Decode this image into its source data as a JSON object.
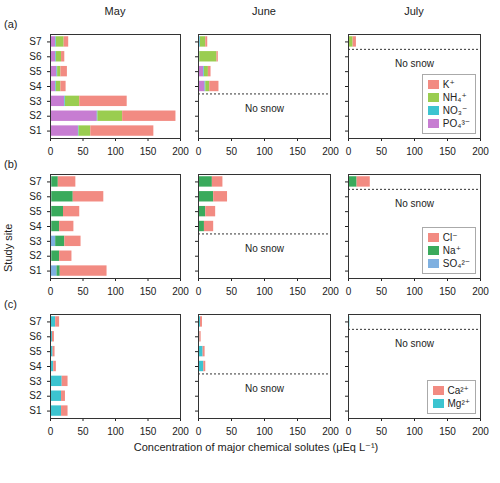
{
  "chart_data": {
    "type": "bar",
    "orientation": "horizontal",
    "stacked": true,
    "xlabel": "Concentration of major chemical solutes (μEq L⁻¹)",
    "ylabel": "Study site",
    "columns": [
      "May",
      "June",
      "July"
    ],
    "categories": [
      "S1",
      "S2",
      "S3",
      "S4",
      "S5",
      "S6",
      "S7"
    ],
    "xlim": [
      0,
      200
    ],
    "xticks": [
      0,
      50,
      100,
      150,
      200
    ],
    "annotation": "No snow",
    "panels": [
      {
        "title": "(a)",
        "legend": "bottom-right",
        "series": [
          {
            "name": "K⁺",
            "color": "#f28b82",
            "values": [
              [
                97,
                82,
                73,
                8,
                10,
                5,
                7
              ],
              [
                null,
                null,
                null,
                14,
                4,
                2,
                3
              ],
              [
                null,
                null,
                null,
                null,
                null,
                null,
                5
              ]
            ]
          },
          {
            "name": "NH₄⁺",
            "color": "#9acd50",
            "values": [
              [
                18,
                38,
                22,
                7,
                5,
                8,
                12
              ],
              [
                null,
                null,
                null,
                6,
                6,
                26,
                8
              ],
              [
                null,
                null,
                null,
                null,
                null,
                null,
                6
              ]
            ]
          },
          {
            "name": "NO₃⁻",
            "color": "#3cc4d0",
            "values": [
              [
                1,
                1,
                1,
                1,
                1,
                1,
                1
              ],
              [
                null,
                null,
                null,
                1,
                1,
                1,
                1
              ],
              [
                null,
                null,
                null,
                null,
                null,
                null,
                1
              ]
            ]
          },
          {
            "name": "PO₄³⁻",
            "color": "#c77dd2",
            "values": [
              [
                43,
                72,
                22,
                8,
                10,
                8,
                8
              ],
              [
                null,
                null,
                null,
                10,
                8,
                1,
                2
              ],
              [
                null,
                null,
                null,
                null,
                null,
                null,
                0
              ]
            ]
          }
        ]
      },
      {
        "title": "(b)",
        "legend": "bottom-right",
        "series": [
          {
            "name": "Cl⁻",
            "color": "#f28b82",
            "values": [
              [
                72,
                19,
                25,
                22,
                25,
                47,
                27
              ],
              [
                null,
                null,
                null,
                14,
                15,
                21,
                16
              ],
              [
                null,
                null,
                null,
                null,
                null,
                null,
                20
              ]
            ]
          },
          {
            "name": "Na⁺",
            "color": "#3aaa5c",
            "values": [
              [
                5,
                12,
                14,
                12,
                18,
                33,
                10
              ],
              [
                null,
                null,
                null,
                8,
                10,
                22,
                20
              ],
              [
                null,
                null,
                null,
                null,
                null,
                null,
                12
              ]
            ]
          },
          {
            "name": "SO₄²⁻",
            "color": "#7fb0e0",
            "values": [
              [
                10,
                2,
                8,
                2,
                2,
                2,
                2
              ],
              [
                null,
                null,
                null,
                1,
                1,
                1,
                1
              ],
              [
                null,
                null,
                null,
                null,
                null,
                null,
                1
              ]
            ]
          }
        ]
      },
      {
        "title": "(c)",
        "legend": "bottom-right",
        "series": [
          {
            "name": "Ca²⁺",
            "color": "#f28b82",
            "values": [
              [
                10,
                6,
                9,
                4,
                3,
                3,
                6
              ],
              [
                null,
                null,
                null,
                3,
                3,
                2,
                3
              ],
              [
                null,
                null,
                null,
                null,
                null,
                null,
                0
              ]
            ]
          },
          {
            "name": "Mg²⁺",
            "color": "#3cc4d0",
            "values": [
              [
                17,
                17,
                18,
                5,
                4,
                3,
                8
              ],
              [
                null,
                null,
                null,
                8,
                7,
                2,
                3
              ],
              [
                null,
                null,
                null,
                null,
                null,
                null,
                2
              ]
            ]
          }
        ]
      }
    ]
  }
}
